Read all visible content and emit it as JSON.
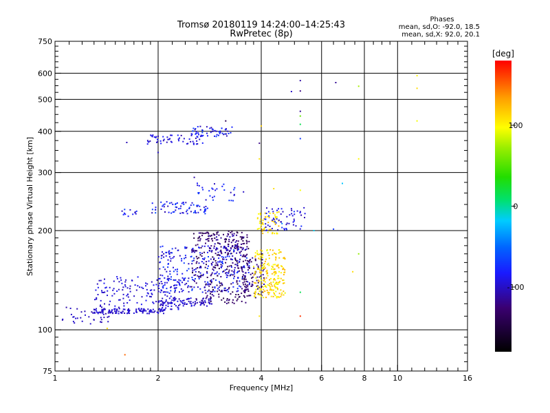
{
  "chart_data": {
    "type": "scatter",
    "title_line1": "Tromsø 20180119 14:24:00–14:25:43",
    "title_line2": "RwPretec (8p)",
    "stats": {
      "heading": "Phases",
      "line1": "mean, sd,O: -92.0, 18.5",
      "line2": "mean, sd,X:  92.0, 20.1"
    },
    "xlabel": "Frequency [MHz]",
    "ylabel": "Stationary phase Virtual Height [km]",
    "x_scale": "log",
    "y_scale": "log",
    "xlim": [
      1,
      16
    ],
    "ylim": [
      75,
      750
    ],
    "x_ticks": [
      1,
      2,
      4,
      6,
      8,
      10,
      16
    ],
    "y_ticks": [
      75,
      100,
      200,
      300,
      400,
      500,
      600,
      750
    ],
    "x_grid": [
      2,
      4,
      6,
      8,
      10
    ],
    "y_grid": [
      100,
      200,
      300,
      400,
      500,
      600
    ],
    "colorbar": {
      "label": "[deg]",
      "range": [
        -180,
        180
      ],
      "ticks": [
        -100,
        0,
        100
      ]
    },
    "clusters": [
      {
        "x": [
          1.05,
          1.45
        ],
        "h": [
          103,
          118
        ],
        "phase": [
          -110,
          -95
        ],
        "n": 40
      },
      {
        "x": [
          1.3,
          2.1
        ],
        "h": [
          112,
          116
        ],
        "phase": [
          -105,
          -92
        ],
        "n": 120
      },
      {
        "x": [
          1.3,
          2.4
        ],
        "h": [
          115,
          145
        ],
        "phase": [
          -105,
          -85
        ],
        "n": 160
      },
      {
        "x": [
          2.0,
          2.9
        ],
        "h": [
          118,
          125
        ],
        "phase": [
          -110,
          -90
        ],
        "n": 90
      },
      {
        "x": [
          2.0,
          3.7
        ],
        "h": [
          130,
          180
        ],
        "phase": [
          -110,
          -65
        ],
        "n": 320
      },
      {
        "x": [
          2.5,
          3.7
        ],
        "h": [
          120,
          200
        ],
        "phase": [
          -150,
          -115
        ],
        "n": 260
      },
      {
        "x": [
          2.8,
          3.6
        ],
        "h": [
          170,
          195
        ],
        "phase": [
          -130,
          -100
        ],
        "n": 60
      },
      {
        "x": [
          3.5,
          4.1
        ],
        "h": [
          125,
          170
        ],
        "phase": [
          -145,
          -110
        ],
        "n": 90
      },
      {
        "x": [
          3.8,
          4.7
        ],
        "h": [
          125,
          175
        ],
        "phase": [
          90,
          130
        ],
        "n": 210
      },
      {
        "x": [
          3.9,
          4.5
        ],
        "h": [
          195,
          230
        ],
        "phase": [
          95,
          125
        ],
        "n": 55
      },
      {
        "x": [
          4.1,
          5.4
        ],
        "h": [
          200,
          235
        ],
        "phase": [
          -110,
          -70
        ],
        "n": 60
      },
      {
        "x": [
          1.55,
          1.75
        ],
        "h": [
          220,
          232
        ],
        "phase": [
          -105,
          -60
        ],
        "n": 12
      },
      {
        "x": [
          1.9,
          2.8
        ],
        "h": [
          225,
          245
        ],
        "phase": [
          -110,
          -60
        ],
        "n": 70
      },
      {
        "x": [
          2.6,
          3.4
        ],
        "h": [
          245,
          280
        ],
        "phase": [
          -105,
          -65
        ],
        "n": 30
      },
      {
        "x": [
          1.85,
          2.7
        ],
        "h": [
          365,
          390
        ],
        "phase": [
          -110,
          -80
        ],
        "n": 55
      },
      {
        "x": [
          2.5,
          3.3
        ],
        "h": [
          385,
          415
        ],
        "phase": [
          -110,
          -65
        ],
        "n": 55
      }
    ],
    "points": [
      {
        "x": 1.42,
        "h": 101,
        "phase": 110
      },
      {
        "x": 1.6,
        "h": 84,
        "phase": 150
      },
      {
        "x": 1.62,
        "h": 370,
        "phase": -105
      },
      {
        "x": 2.0,
        "h": 345,
        "phase": -100
      },
      {
        "x": 2.55,
        "h": 290,
        "phase": -110
      },
      {
        "x": 3.55,
        "h": 262,
        "phase": -100
      },
      {
        "x": 3.15,
        "h": 430,
        "phase": -140
      },
      {
        "x": 3.95,
        "h": 368,
        "phase": -120
      },
      {
        "x": 4.0,
        "h": 415,
        "phase": 115
      },
      {
        "x": 3.95,
        "h": 330,
        "phase": 110
      },
      {
        "x": 4.35,
        "h": 268,
        "phase": 110
      },
      {
        "x": 5.2,
        "h": 570,
        "phase": -110
      },
      {
        "x": 5.2,
        "h": 530,
        "phase": -120
      },
      {
        "x": 4.9,
        "h": 528,
        "phase": -100
      },
      {
        "x": 5.2,
        "h": 460,
        "phase": -115
      },
      {
        "x": 5.2,
        "h": 445,
        "phase": 55
      },
      {
        "x": 5.2,
        "h": 420,
        "phase": 15
      },
      {
        "x": 5.2,
        "h": 380,
        "phase": -70
      },
      {
        "x": 5.2,
        "h": 265,
        "phase": 95
      },
      {
        "x": 5.2,
        "h": 130,
        "phase": 15
      },
      {
        "x": 5.2,
        "h": 110,
        "phase": 165
      },
      {
        "x": 3.95,
        "h": 110,
        "phase": 110
      },
      {
        "x": 6.6,
        "h": 562,
        "phase": -115
      },
      {
        "x": 7.7,
        "h": 548,
        "phase": 75
      },
      {
        "x": 7.7,
        "h": 330,
        "phase": 100
      },
      {
        "x": 7.7,
        "h": 170,
        "phase": 70
      },
      {
        "x": 6.9,
        "h": 278,
        "phase": -20
      },
      {
        "x": 6.5,
        "h": 202,
        "phase": -70
      },
      {
        "x": 11.4,
        "h": 590,
        "phase": 100
      },
      {
        "x": 11.4,
        "h": 540,
        "phase": 110
      },
      {
        "x": 11.4,
        "h": 430,
        "phase": 95
      },
      {
        "x": 7.4,
        "h": 150,
        "phase": 110
      },
      {
        "x": 4.6,
        "h": 210,
        "phase": -40
      },
      {
        "x": 5.7,
        "h": 200,
        "phase": -15
      }
    ]
  }
}
